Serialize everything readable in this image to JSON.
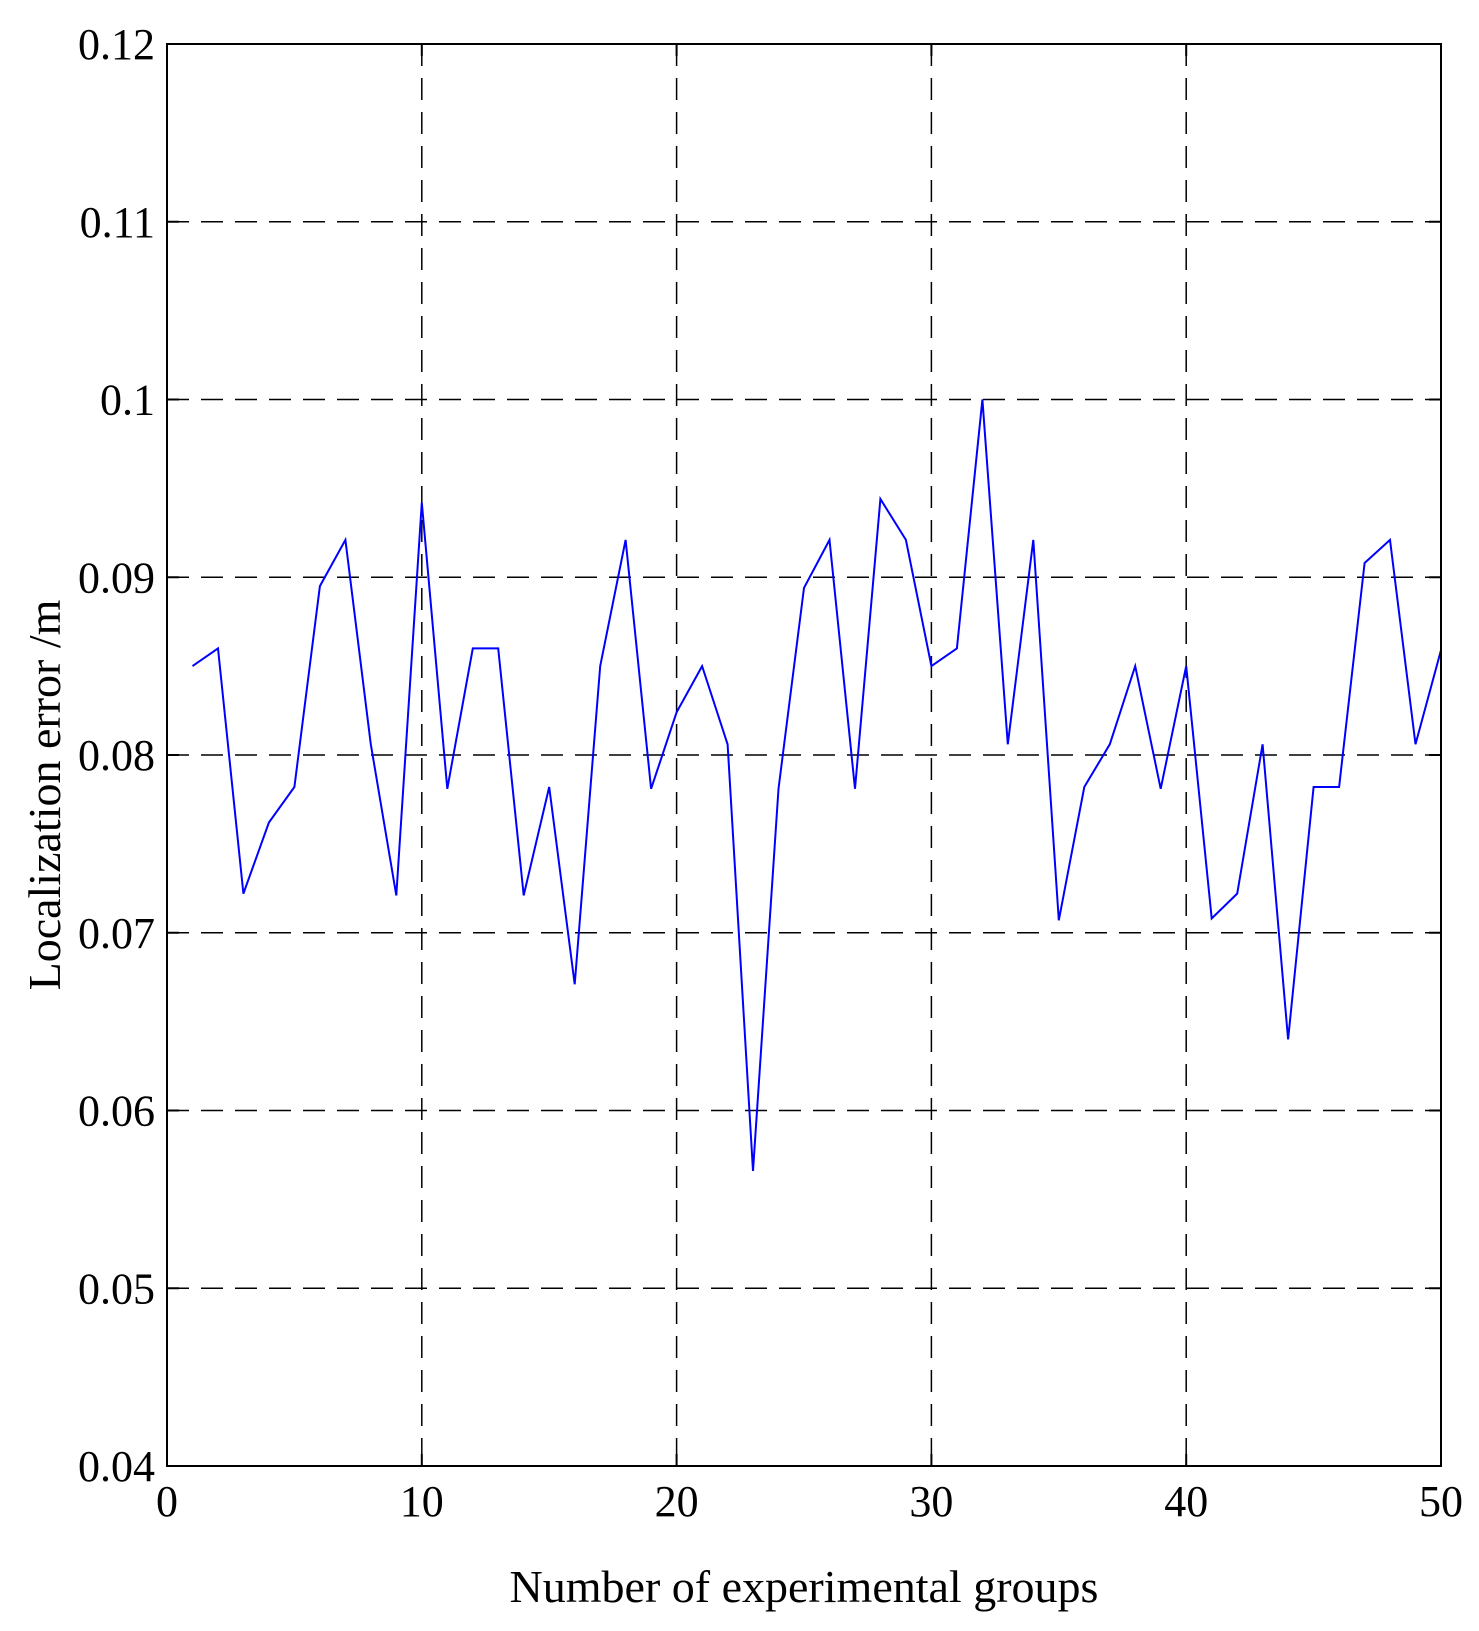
{
  "chart_data": {
    "type": "line",
    "title": "",
    "xlabel": "Number of experimental groups",
    "ylabel": "Localization  error /m",
    "xlim": [
      0,
      50
    ],
    "ylim": [
      0.04,
      0.12
    ],
    "xticks": [
      0,
      10,
      20,
      30,
      40,
      50
    ],
    "xtick_labels": [
      "0",
      "10",
      "20",
      "30",
      "40",
      "50"
    ],
    "yticks": [
      0.04,
      0.05,
      0.06,
      0.07,
      0.08,
      0.09,
      0.1,
      0.11,
      0.12
    ],
    "ytick_labels": [
      "0.04",
      "0.05",
      "0.06",
      "0.07",
      "0.08",
      "0.09",
      "0.1",
      "0.11",
      "0.12"
    ],
    "grid": true,
    "grid_style": "dashed",
    "line_color": "#0000ff",
    "series": [
      {
        "x": [
          1,
          2,
          3,
          4,
          5,
          6,
          7,
          8,
          9,
          10,
          11,
          12,
          13,
          14,
          15,
          16,
          17,
          18,
          19,
          20,
          21,
          22,
          23,
          24,
          25,
          26,
          27,
          28,
          29,
          30,
          31,
          32,
          33,
          34,
          35,
          36,
          37,
          38,
          39,
          40,
          41,
          42,
          43,
          44,
          45,
          46,
          47,
          48,
          49,
          50
        ],
        "values": [
          0.085,
          0.086,
          0.0722,
          0.0762,
          0.0782,
          0.0895,
          0.0921,
          0.0806,
          0.0721,
          0.0942,
          0.0781,
          0.086,
          0.086,
          0.0721,
          0.0782,
          0.0671,
          0.085,
          0.0921,
          0.0781,
          0.0824,
          0.085,
          0.0806,
          0.0566,
          0.0781,
          0.0894,
          0.0921,
          0.0781,
          0.0944,
          0.0921,
          0.085,
          0.086,
          0.1,
          0.0806,
          0.0921,
          0.0707,
          0.0782,
          0.0806,
          0.085,
          0.0781,
          0.085,
          0.0708,
          0.0722,
          0.0806,
          0.064,
          0.0782,
          0.0782,
          0.0908,
          0.0921,
          0.0806,
          0.0859
        ]
      }
    ]
  }
}
